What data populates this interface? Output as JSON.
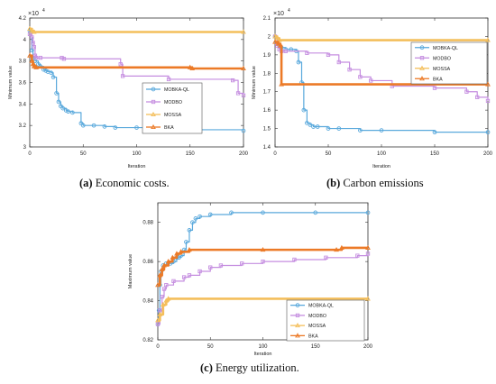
{
  "chart_data": [
    {
      "type": "line",
      "panel": "a",
      "caption_letter": "(a)",
      "caption_text": "Economic costs.",
      "xlabel": "Iteration",
      "ylabel": "Minimum value",
      "exponent_label": "×10",
      "exponent_power": "4",
      "xlim": [
        0,
        200
      ],
      "ylim": [
        3,
        4.2
      ],
      "xticks": [
        "0",
        "50",
        "100",
        "150",
        "200"
      ],
      "yticks": [
        "3",
        "3.2",
        "3.4",
        "3.6",
        "3.8",
        "4",
        "4.2"
      ],
      "legend": "center-right",
      "series": [
        {
          "name": "MOBKA-QL",
          "color": "#5aa9dc",
          "marker": "circle",
          "x": [
            0,
            2,
            3,
            5,
            8,
            10,
            13,
            15,
            17,
            20,
            22,
            25,
            27,
            29,
            31,
            34,
            36,
            40,
            48,
            50,
            60,
            70,
            80,
            100,
            125,
            150,
            200
          ],
          "y": [
            4.08,
            3.9,
            3.83,
            3.8,
            3.77,
            3.75,
            3.72,
            3.71,
            3.7,
            3.69,
            3.65,
            3.5,
            3.42,
            3.38,
            3.36,
            3.34,
            3.33,
            3.32,
            3.22,
            3.2,
            3.2,
            3.19,
            3.18,
            3.18,
            3.17,
            3.16,
            3.15
          ]
        },
        {
          "name": "MODBO",
          "color": "#c58ee0",
          "marker": "square",
          "x": [
            0,
            2,
            3,
            4,
            5,
            6,
            10,
            30,
            32,
            85,
            87,
            130,
            190,
            195,
            200
          ],
          "y": [
            4.05,
            4.02,
            3.97,
            3.93,
            3.85,
            3.83,
            3.83,
            3.83,
            3.82,
            3.77,
            3.66,
            3.63,
            3.62,
            3.5,
            3.48
          ]
        },
        {
          "name": "MOSSA",
          "color": "#f4bf5c",
          "marker": "triangle",
          "x": [
            0,
            2,
            4,
            200
          ],
          "y": [
            4.1,
            4.08,
            4.07,
            4.07
          ]
        },
        {
          "name": "BKA",
          "color": "#ec7a27",
          "marker": "triangle",
          "x": [
            0,
            2,
            3,
            4,
            5,
            6,
            150,
            152,
            200
          ],
          "y": [
            3.85,
            3.8,
            3.77,
            3.75,
            3.75,
            3.74,
            3.74,
            3.73,
            3.73
          ]
        }
      ]
    },
    {
      "type": "line",
      "panel": "b",
      "caption_letter": "(b)",
      "caption_text": "Carbon emissions",
      "xlabel": "Iteration",
      "ylabel": "Minimum value",
      "exponent_label": "×10",
      "exponent_power": "4",
      "xlim": [
        0,
        200
      ],
      "ylim": [
        1.4,
        2.1
      ],
      "xticks": [
        "0",
        "50",
        "100",
        "150",
        "200"
      ],
      "yticks": [
        "1.4",
        "1.5",
        "1.6",
        "1.7",
        "1.8",
        "1.9",
        "2",
        "2.1"
      ],
      "legend": "top-right",
      "series": [
        {
          "name": "MOBKA-QL",
          "color": "#5aa9dc",
          "marker": "circle",
          "x": [
            0,
            2,
            4,
            6,
            10,
            15,
            20,
            22,
            25,
            27,
            30,
            33,
            36,
            40,
            50,
            60,
            80,
            100,
            150,
            200
          ],
          "y": [
            2.0,
            1.96,
            1.95,
            1.94,
            1.93,
            1.93,
            1.92,
            1.86,
            1.75,
            1.6,
            1.53,
            1.52,
            1.51,
            1.51,
            1.5,
            1.5,
            1.49,
            1.49,
            1.48,
            1.48
          ]
        },
        {
          "name": "MODBO",
          "color": "#c58ee0",
          "marker": "square",
          "x": [
            0,
            2,
            4,
            6,
            10,
            30,
            50,
            60,
            70,
            80,
            90,
            110,
            150,
            180,
            190,
            200
          ],
          "y": [
            2.0,
            1.95,
            1.93,
            1.92,
            1.92,
            1.91,
            1.9,
            1.86,
            1.82,
            1.78,
            1.76,
            1.73,
            1.72,
            1.7,
            1.67,
            1.65
          ]
        },
        {
          "name": "MOSSA",
          "color": "#f4bf5c",
          "marker": "triangle",
          "x": [
            0,
            2,
            4,
            200
          ],
          "y": [
            2.0,
            1.99,
            1.98,
            1.98
          ]
        },
        {
          "name": "BKA",
          "color": "#ec7a27",
          "marker": "triangle",
          "x": [
            0,
            3,
            5,
            6,
            200
          ],
          "y": [
            1.97,
            1.96,
            1.95,
            1.74,
            1.74
          ]
        }
      ]
    },
    {
      "type": "line",
      "panel": "c",
      "caption_letter": "(c)",
      "caption_text": "Energy utilization.",
      "xlabel": "Iteration",
      "ylabel": "Maximum value",
      "xlim": [
        0,
        200
      ],
      "ylim": [
        0.82,
        0.89
      ],
      "xticks": [
        "0",
        "50",
        "100",
        "150",
        "200"
      ],
      "yticks": [
        "0.82",
        "0.84",
        "0.86",
        "0.88"
      ],
      "legend": "bottom-right",
      "series": [
        {
          "name": "MOBKA-QL",
          "color": "#5aa9dc",
          "marker": "circle",
          "x": [
            0,
            1,
            2,
            3,
            5,
            8,
            12,
            15,
            18,
            20,
            22,
            25,
            27,
            30,
            33,
            36,
            40,
            50,
            70,
            100,
            150,
            200
          ],
          "y": [
            0.828,
            0.835,
            0.848,
            0.855,
            0.858,
            0.859,
            0.859,
            0.86,
            0.862,
            0.862,
            0.863,
            0.866,
            0.87,
            0.876,
            0.88,
            0.882,
            0.883,
            0.884,
            0.885,
            0.885,
            0.885,
            0.885
          ]
        },
        {
          "name": "MODBO",
          "color": "#c58ee0",
          "marker": "square",
          "x": [
            0,
            2,
            4,
            6,
            8,
            15,
            25,
            30,
            40,
            50,
            60,
            80,
            100,
            130,
            160,
            190,
            200
          ],
          "y": [
            0.828,
            0.835,
            0.842,
            0.846,
            0.848,
            0.85,
            0.852,
            0.853,
            0.855,
            0.857,
            0.858,
            0.859,
            0.86,
            0.861,
            0.862,
            0.863,
            0.864
          ]
        },
        {
          "name": "MOSSA",
          "color": "#f4bf5c",
          "marker": "triangle",
          "x": [
            0,
            2,
            5,
            8,
            10,
            200
          ],
          "y": [
            0.83,
            0.833,
            0.838,
            0.84,
            0.841,
            0.841
          ]
        },
        {
          "name": "BKA",
          "color": "#ec7a27",
          "marker": "triangle",
          "x": [
            0,
            2,
            4,
            6,
            10,
            14,
            18,
            22,
            30,
            100,
            170,
            175,
            200
          ],
          "y": [
            0.848,
            0.853,
            0.856,
            0.858,
            0.86,
            0.862,
            0.864,
            0.865,
            0.866,
            0.866,
            0.866,
            0.867,
            0.867
          ]
        }
      ]
    }
  ]
}
